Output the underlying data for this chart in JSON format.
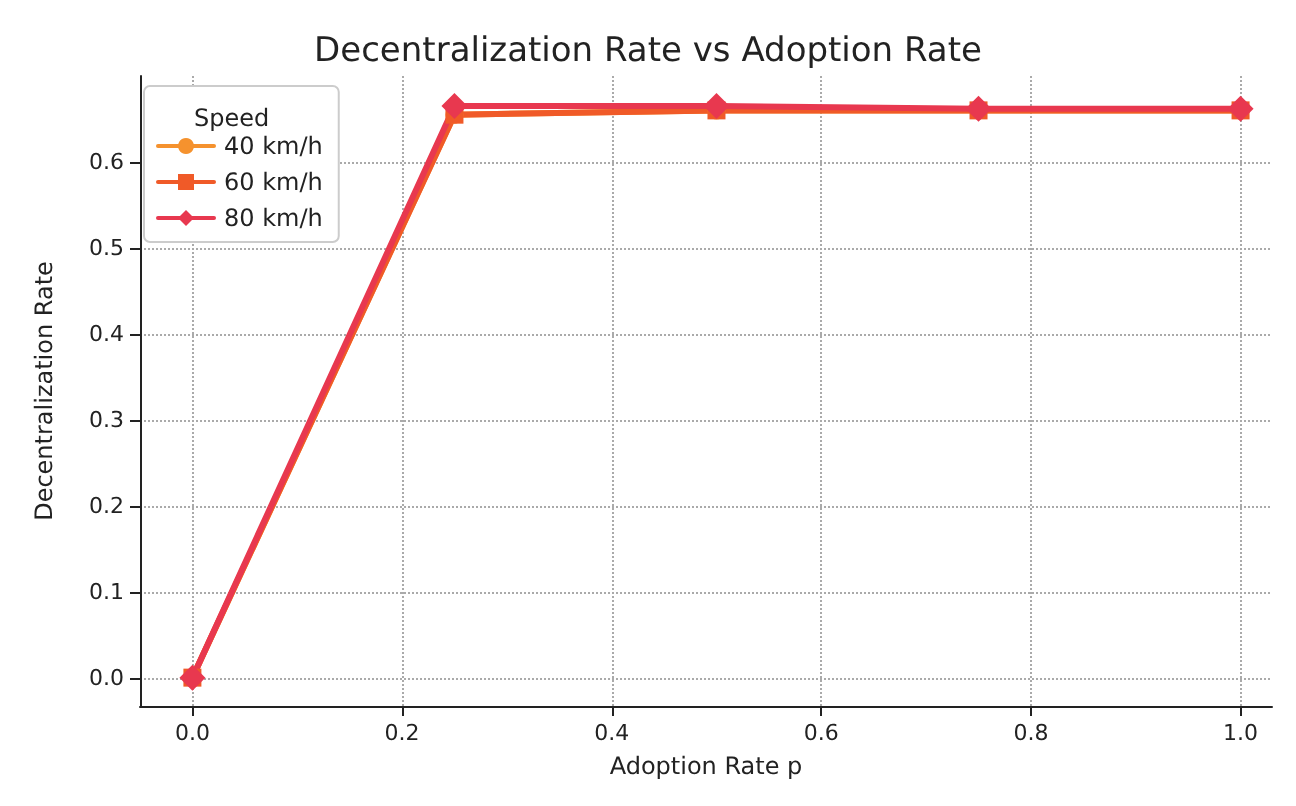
{
  "chart_data": {
    "type": "line",
    "title": "Decentralization Rate vs Adoption Rate",
    "xlabel": "Adoption Rate p",
    "ylabel": "Decentralization Rate",
    "legend_title": "Speed",
    "x": [
      0,
      0.25,
      0.5,
      0.75,
      1.0
    ],
    "series": [
      {
        "name": "40 km/h",
        "color": "#f5922e",
        "marker": "circle",
        "values": [
          0,
          0.655,
          0.66,
          0.66,
          0.66
        ]
      },
      {
        "name": "60 km/h",
        "color": "#f05a28",
        "marker": "square",
        "values": [
          0,
          0.655,
          0.66,
          0.66,
          0.66
        ]
      },
      {
        "name": "80 km/h",
        "color": "#e8384f",
        "marker": "diamond",
        "values": [
          0,
          0.665,
          0.665,
          0.662,
          0.662
        ]
      }
    ],
    "xlim": [
      -0.05,
      1.03
    ],
    "xticks": [
      {
        "value": 0,
        "label": "0.0"
      },
      0.2,
      0.4,
      0.6,
      0.8,
      {
        "value": 1,
        "label": "1.0"
      }
    ],
    "ylim": [
      -0.033,
      0.7
    ],
    "yticks": [
      {
        "value": 0,
        "label": "0.0"
      },
      0.1,
      0.2,
      0.3,
      0.4,
      0.5,
      0.6
    ],
    "grid": true,
    "legend": "top left",
    "line_style": "solid"
  }
}
